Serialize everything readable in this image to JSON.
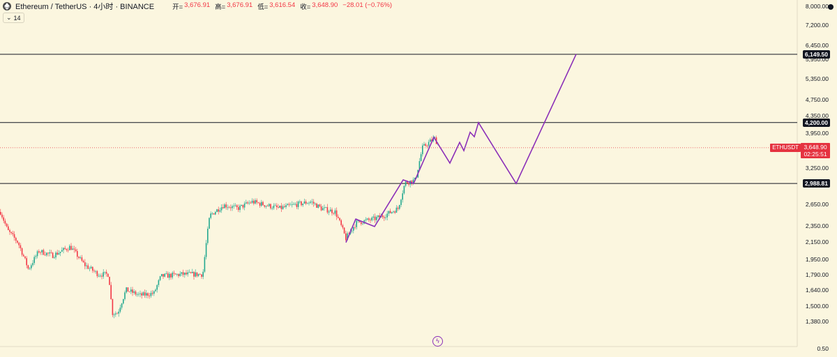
{
  "header": {
    "symbol": "Ethereum / TetherUS · 4小时 · BINANCE",
    "ohlc": [
      {
        "label": "开=",
        "value": "3,676.91"
      },
      {
        "label": "高=",
        "value": "3,676.91"
      },
      {
        "label": "低=",
        "value": "3,616.54"
      },
      {
        "label": "收=",
        "value": "3,648.90"
      }
    ],
    "change": "−28.01 (−0.76%)",
    "indicator_count": "14",
    "icons": [
      "ethereum-logo",
      "chevron-down-icon",
      "flash-icon"
    ]
  },
  "colors": {
    "background": "#fbf6df",
    "up": "#22a88f",
    "down": "#f23645",
    "projection": "#8b2fb8",
    "level_line": "#131722",
    "current_price": "#e53340"
  },
  "axis": {
    "ticks": [
      "0.50",
      "1,380.00",
      "1,500.00",
      "1,640.00",
      "1,790.00",
      "1,950.00",
      "2,150.00",
      "2,350.00",
      "2,650.00",
      "2,988.81",
      "3,250.00",
      "3,648.90",
      "3,950.00",
      "4,200.00",
      "4,350.00",
      "4,750.00",
      "5,350.00",
      "5,950.00",
      "6,149.50",
      "6,450.00",
      "7,200.00",
      "8,000.00"
    ]
  },
  "levels": [
    {
      "label": "6,149.50",
      "value": 6149.5
    },
    {
      "label": "4,200.00",
      "value": 4200
    },
    {
      "label": "2,988.81",
      "value": 2988.81
    }
  ],
  "current_price": {
    "symbol": "ETHUSDT",
    "price": "3,648.90",
    "countdown": "02:25:51",
    "value": 3648.9
  },
  "chart_data": {
    "type": "candlestick",
    "symbol": "ETHUSDT",
    "interval": "4小时",
    "exchange": "BINANCE",
    "y_scale": "log",
    "ylim": [
      1300,
      9000
    ],
    "price_path": [
      [
        0,
        2550
      ],
      [
        10,
        2300
      ],
      [
        25,
        2150
      ],
      [
        40,
        1850
      ],
      [
        55,
        2050
      ],
      [
        75,
        2000
      ],
      [
        100,
        2100
      ],
      [
        120,
        1900
      ],
      [
        140,
        1800
      ],
      [
        155,
        1800
      ],
      [
        160,
        1450
      ],
      [
        168,
        1450
      ],
      [
        180,
        1650
      ],
      [
        200,
        1600
      ],
      [
        220,
        1620
      ],
      [
        230,
        1780
      ],
      [
        260,
        1800
      ],
      [
        290,
        1800
      ],
      [
        300,
        2500
      ],
      [
        320,
        2650
      ],
      [
        340,
        2600
      ],
      [
        360,
        2700
      ],
      [
        380,
        2650
      ],
      [
        400,
        2600
      ],
      [
        420,
        2650
      ],
      [
        445,
        2700
      ],
      [
        460,
        2600
      ],
      [
        480,
        2550
      ],
      [
        495,
        2200
      ],
      [
        510,
        2400
      ],
      [
        535,
        2450
      ],
      [
        550,
        2500
      ],
      [
        570,
        2600
      ],
      [
        580,
        3000
      ],
      [
        595,
        3050
      ],
      [
        605,
        3650
      ],
      [
        622,
        3850
      ],
      [
        628,
        3700
      ]
    ],
    "projection_path": [
      [
        496,
        2150
      ],
      [
        510,
        2450
      ],
      [
        537,
        2350
      ],
      [
        578,
        3050
      ],
      [
        593,
        2990
      ],
      [
        622,
        3870
      ],
      [
        645,
        3350
      ],
      [
        659,
        3760
      ],
      [
        665,
        3590
      ],
      [
        674,
        3980
      ],
      [
        680,
        3880
      ],
      [
        686,
        4200
      ],
      [
        740,
        2988.81
      ],
      [
        826,
        6149.5
      ]
    ]
  }
}
